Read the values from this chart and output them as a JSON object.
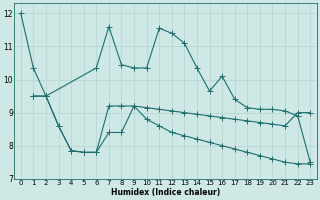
{
  "xlabel": "Humidex (Indice chaleur)",
  "xlim": [
    -0.5,
    23.5
  ],
  "ylim": [
    7,
    12.3
  ],
  "yticks": [
    7,
    8,
    9,
    10,
    11,
    12
  ],
  "xticks": [
    0,
    1,
    2,
    3,
    4,
    5,
    6,
    7,
    8,
    9,
    10,
    11,
    12,
    13,
    14,
    15,
    16,
    17,
    18,
    19,
    20,
    21,
    22,
    23
  ],
  "bg_color": "#cde8e5",
  "grid_color": "#b8d8d5",
  "line_color": "#1e6e6e",
  "series1_x": [
    0,
    1,
    2,
    6,
    7,
    8,
    9,
    10,
    11,
    12,
    13,
    14,
    15,
    16,
    17,
    18,
    19,
    20,
    21,
    22,
    23
  ],
  "series1_y": [
    12.0,
    10.35,
    9.5,
    10.35,
    11.6,
    10.45,
    10.35,
    10.35,
    11.55,
    11.4,
    11.1,
    10.35,
    9.65,
    10.1,
    9.4,
    9.15,
    9.1,
    9.1,
    9.05,
    8.9,
    7.5
  ],
  "series2_x": [
    1,
    2,
    3,
    4,
    5,
    6,
    7,
    8,
    9,
    10,
    11,
    12,
    13,
    14,
    15,
    16,
    17,
    18,
    19,
    20,
    21,
    22,
    23
  ],
  "series2_y": [
    9.5,
    9.5,
    8.6,
    7.85,
    7.8,
    7.8,
    9.2,
    9.2,
    9.2,
    9.15,
    9.1,
    9.05,
    9.0,
    8.95,
    8.9,
    8.85,
    8.8,
    8.75,
    8.7,
    8.65,
    8.6,
    9.0,
    9.0
  ],
  "series3_x": [
    1,
    2,
    3,
    4,
    5,
    6,
    7,
    8,
    9,
    10,
    11,
    12,
    13,
    14,
    15,
    16,
    17,
    18,
    19,
    20,
    21,
    22,
    23
  ],
  "series3_y": [
    9.5,
    9.5,
    8.6,
    7.85,
    7.8,
    7.8,
    8.4,
    8.4,
    9.2,
    8.8,
    8.6,
    8.4,
    8.3,
    8.2,
    8.1,
    8.0,
    7.9,
    7.8,
    7.7,
    7.6,
    7.5,
    7.45,
    7.45
  ]
}
